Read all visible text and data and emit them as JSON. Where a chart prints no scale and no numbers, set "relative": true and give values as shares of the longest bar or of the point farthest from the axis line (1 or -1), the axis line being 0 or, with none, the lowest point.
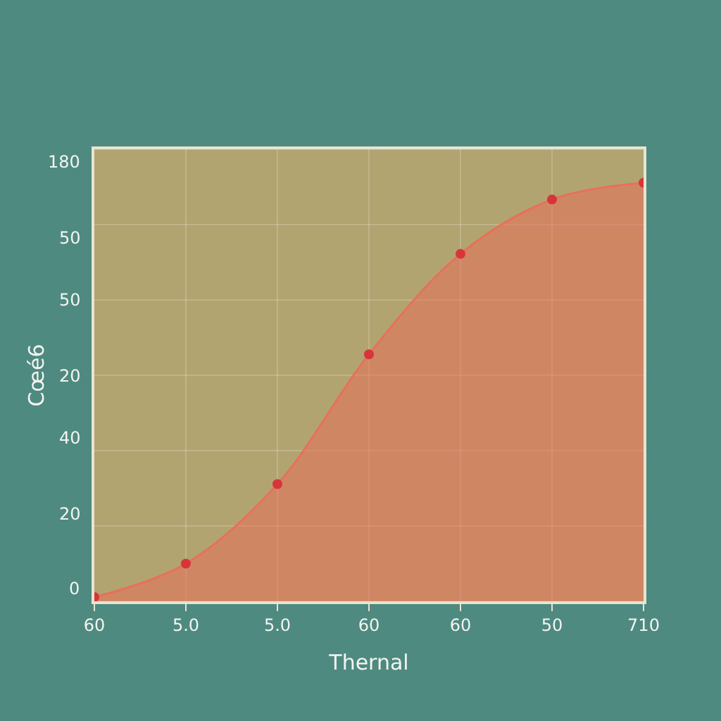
{
  "chart_data": {
    "type": "area",
    "xlabel": "Thernal",
    "ylabel": "Cœé6",
    "relative": true,
    "categories": [
      "60",
      "5.0",
      "5.0",
      "60",
      "60",
      "50",
      "710"
    ],
    "series": [
      {
        "color": "#e8705a",
        "values": [
          0.01,
          0.09,
          0.28,
          0.59,
          0.83,
          0.96,
          1
        ]
      }
    ],
    "annotations": [
      "0",
      "20",
      "40",
      "20",
      "50",
      "50",
      "180"
    ],
    "grid": true,
    "marker": "circle"
  }
}
